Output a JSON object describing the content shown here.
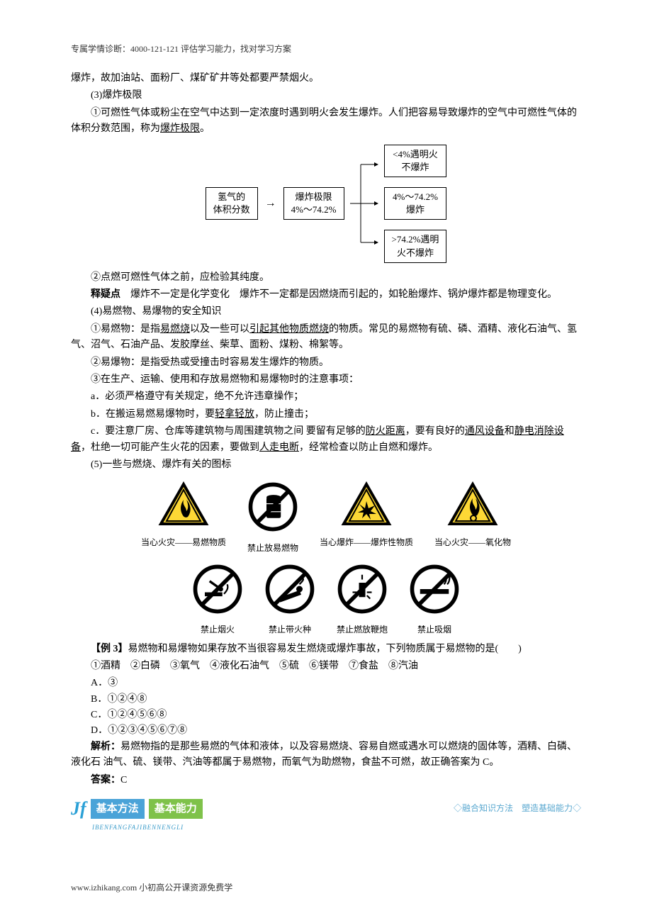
{
  "header": {
    "text": "专属学情诊断：4000-121-121 评估学习能力，找对学习方案"
  },
  "body": {
    "p1": "爆炸，故加油站、面粉厂、煤矿矿井等处都要严禁烟火。",
    "p2": "(3)爆炸极限",
    "p3a": "①可燃性气体或粉尘在空气中达到一定浓度时遇到明火会发生爆炸。人们把容易导致爆炸的空气中可燃性气体的体积分数范围，称为",
    "p3b": "爆炸极限",
    "p3c": "。",
    "diagram": {
      "left": {
        "l1": "氢气的",
        "l2": "体积分数"
      },
      "mid": {
        "l1": "爆炸极限",
        "l2": "4%～74.2%"
      },
      "b1": {
        "l1": "<4%遇明火",
        "l2": "不爆炸"
      },
      "b2": {
        "l1": "4%～74.2%",
        "l2": "爆炸"
      },
      "b3": {
        "l1": ">74.2%遇明",
        "l2": "火不爆炸"
      }
    },
    "p4": "②点燃可燃性气体之前，应检验其纯度。",
    "p5lead": "释疑点",
    "p5a": "　爆炸不一定是化学变化　爆炸不一定都是因燃烧而引起的，如轮胎爆炸、锅炉爆炸都是物理变化。",
    "p6": "(4)易燃物、易爆物的安全知识",
    "p7a": "①易燃物：是指",
    "p7u1": "易燃烧",
    "p7b": "以及一些可以",
    "p7u2": "引起其他物质燃烧",
    "p7c": "的物质。常见的易燃物有硫、磷、酒精、液化石油气、氢气、沼气、石油产品、发胶摩丝、柴草、面粉、煤粉、棉絮等。",
    "p8": "②易爆物：是指受热或受撞击时容易发生爆炸的物质。",
    "p9": "③在生产、运输、使用和存放易燃物和易爆物时的注意事项：",
    "p10": "a．必须严格遵守有关规定，绝不允许违章操作；",
    "p11a": "b．在搬运易燃易爆物时，要",
    "p11u": "轻拿轻放",
    "p11b": "，防止撞击；",
    "p12a": "c．要注意厂房、仓库等建筑物与周围建筑物之间 要留有足够的",
    "p12u1": "防火距离",
    "p12b": "，要有良好的",
    "p12u2": "通风设备",
    "p12c": "和",
    "p12u3": "静电消除设备",
    "p12d": "，杜绝一切可能产生火花的因素，要做到",
    "p12u4": "人走电断",
    "p12e": "，经常检查以防止自燃和爆炸。",
    "p13": "(5)一些与燃烧、爆炸有关的图标",
    "hazards_row1": [
      {
        "label": "当心火灾——易燃物质",
        "type": "triangle",
        "glyph": "flame"
      },
      {
        "label": "禁止放易燃物",
        "type": "circle",
        "glyph": "barrel"
      },
      {
        "label": "当心爆炸——爆炸性物质",
        "type": "triangle",
        "glyph": "explosion"
      },
      {
        "label": "当心火灾——氧化物",
        "type": "triangle",
        "glyph": "flame-o"
      }
    ],
    "hazards_row2": [
      {
        "label": "禁止烟火",
        "type": "circle",
        "glyph": "match-cig"
      },
      {
        "label": "禁止带火种",
        "type": "circle",
        "glyph": "match"
      },
      {
        "label": "禁止燃放鞭炮",
        "type": "circle",
        "glyph": "firework"
      },
      {
        "label": "禁止吸烟",
        "type": "circle",
        "glyph": "cigarette"
      }
    ],
    "q_lead": "【例 3】",
    "q_text": "易燃物和易爆物如果存放不当很容易发生燃烧或爆炸事故，下列物质属于易燃物的是(　　)",
    "q_items": "①酒精　②白磷　③氧气　④液化石油气　⑤硫　⑥镁带　⑦食盐　⑧汽油",
    "opts": {
      "a": "A．③",
      "b": "B．①②④⑧",
      "c": "C．①②④⑤⑥⑧",
      "d": "D．①②③④⑤⑥⑦⑧"
    },
    "ans_lead": "解析：",
    "ans_text": "易燃物指的是那些易燃的气体和液体，以及容易燃烧、容易自燃或遇水可以燃烧的固体等，酒精、白磷、液化石 油气、硫、镁带、汽油等都属于易燃物，而氧气为助燃物，食盐不可燃，故正确答案为 C。",
    "answer_lead": "答案：",
    "answer": "C"
  },
  "banner": {
    "jf": "Jf",
    "t1": "基本方法",
    "t2": "基本能力",
    "pinyin": "IBENFANGFAJIBENNENGLI",
    "right": "◇融合知识方法　塑造基础能力◇"
  },
  "footer": {
    "text": "www.izhikang.com 小初高公开课资源免费学"
  },
  "colors": {
    "text": "#000000",
    "bg": "#ffffff",
    "blue": "#4aa3d8",
    "green": "#7fc24a",
    "light_blue_text": "#5aa8d0"
  }
}
